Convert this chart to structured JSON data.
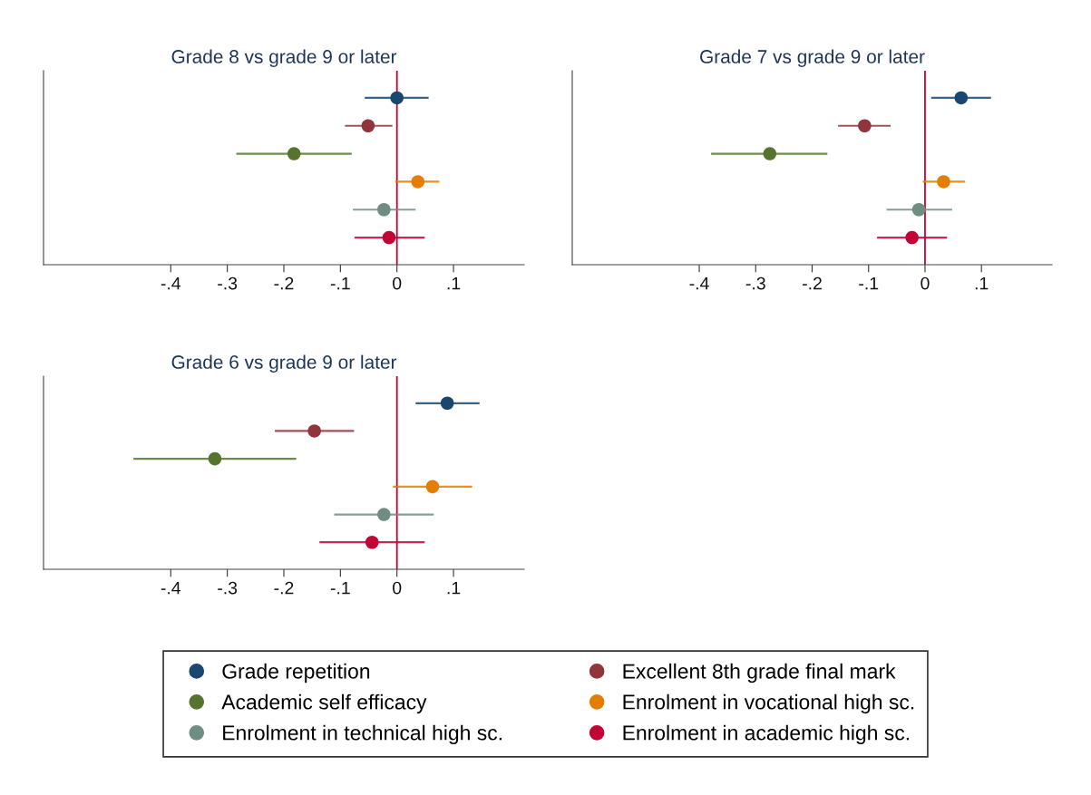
{
  "chart_data": [
    {
      "type": "scatter",
      "orientation": "horizontal",
      "title": "Grade 8 vs grade 9 or later",
      "categories": [
        null,
        null,
        null,
        null,
        null,
        null
      ],
      "xlim": [
        -0.625,
        0.225
      ],
      "xticks": [
        {
          "value": -0.4,
          "label": "-.4"
        },
        {
          "value": -0.3,
          "label": "-.3"
        },
        {
          "value": -0.2,
          "label": "-.2"
        },
        {
          "value": -0.1,
          "label": "-.1"
        },
        {
          "value": 0,
          "label": "0"
        },
        {
          "value": 0.1,
          "label": ".1"
        }
      ],
      "tick_labels": "x",
      "marker": "circle",
      "grid": false,
      "legend": "bottom",
      "ref_lines": [
        {
          "axis": "x",
          "value": 0,
          "color": "#c10534"
        }
      ],
      "series": [
        {
          "name": "Grade repetition",
          "color": "#1a476f",
          "values": [
            0.0,
            null,
            null,
            null,
            null,
            null
          ],
          "errors": [
            [
              -0.057,
              0.056
            ],
            null,
            null,
            null,
            null,
            null
          ]
        },
        {
          "name": "Excellent 8th grade final mark",
          "color": "#90353b",
          "values": [
            null,
            -0.051,
            null,
            null,
            null,
            null
          ],
          "errors": [
            null,
            [
              -0.092,
              -0.008
            ],
            null,
            null,
            null,
            null
          ]
        },
        {
          "name": "Academic self efficacy",
          "color": "#55752f",
          "values": [
            null,
            null,
            -0.182,
            null,
            null,
            null
          ],
          "errors": [
            null,
            null,
            [
              -0.284,
              -0.08
            ],
            null,
            null,
            null
          ]
        },
        {
          "name": "Enrolment in vocational high sc.",
          "color": "#e37e00",
          "values": [
            null,
            null,
            null,
            0.037,
            null,
            null
          ],
          "errors": [
            null,
            null,
            null,
            [
              -0.003,
              0.075
            ],
            null,
            null
          ]
        },
        {
          "name": "Enrolment in technical high sc.",
          "color": "#6e8e84",
          "values": [
            null,
            null,
            null,
            null,
            -0.023,
            null
          ],
          "errors": [
            null,
            null,
            null,
            null,
            [
              -0.078,
              0.033
            ],
            null
          ]
        },
        {
          "name": "Enrolment in academic high sc.",
          "color": "#c10534",
          "values": [
            null,
            null,
            null,
            null,
            null,
            -0.014
          ],
          "errors": [
            null,
            null,
            null,
            null,
            null,
            [
              -0.075,
              0.049
            ]
          ]
        }
      ]
    },
    {
      "type": "scatter",
      "orientation": "horizontal",
      "title": "Grade 7 vs grade 9 or later",
      "categories": [
        null,
        null,
        null,
        null,
        null,
        null
      ],
      "xlim": [
        -0.625,
        0.225
      ],
      "xticks": [
        {
          "value": -0.4,
          "label": "-.4"
        },
        {
          "value": -0.3,
          "label": "-.3"
        },
        {
          "value": -0.2,
          "label": "-.2"
        },
        {
          "value": -0.1,
          "label": "-.1"
        },
        {
          "value": 0,
          "label": "0"
        },
        {
          "value": 0.1,
          "label": ".1"
        }
      ],
      "tick_labels": "x",
      "marker": "circle",
      "grid": false,
      "ref_lines": [
        {
          "axis": "x",
          "value": 0,
          "color": "#c10534"
        }
      ],
      "series": [
        {
          "color": "#1a476f",
          "values": [
            0.064,
            null,
            null,
            null,
            null,
            null
          ],
          "errors": [
            [
              0.011,
              0.117
            ],
            null,
            null,
            null,
            null,
            null
          ]
        },
        {
          "color": "#90353b",
          "values": [
            null,
            -0.107,
            null,
            null,
            null,
            null
          ],
          "errors": [
            null,
            [
              -0.154,
              -0.061
            ],
            null,
            null,
            null,
            null
          ]
        },
        {
          "color": "#55752f",
          "values": [
            null,
            null,
            -0.275,
            null,
            null,
            null
          ],
          "errors": [
            null,
            null,
            [
              -0.379,
              -0.173
            ],
            null,
            null,
            null
          ]
        },
        {
          "color": "#e37e00",
          "values": [
            null,
            null,
            null,
            0.033,
            null,
            null
          ],
          "errors": [
            null,
            null,
            null,
            [
              -0.004,
              0.071
            ],
            null,
            null
          ]
        },
        {
          "color": "#6e8e84",
          "values": [
            null,
            null,
            null,
            null,
            -0.011,
            null
          ],
          "errors": [
            null,
            null,
            null,
            null,
            [
              -0.068,
              0.048
            ],
            null
          ]
        },
        {
          "color": "#c10534",
          "values": [
            null,
            null,
            null,
            null,
            null,
            -0.023
          ],
          "errors": [
            null,
            null,
            null,
            null,
            null,
            [
              -0.085,
              0.039
            ]
          ]
        }
      ]
    },
    {
      "type": "scatter",
      "orientation": "horizontal",
      "title": "Grade 6 vs grade 9 or later",
      "categories": [
        null,
        null,
        null,
        null,
        null,
        null
      ],
      "xlim": [
        -0.625,
        0.225
      ],
      "xticks": [
        {
          "value": -0.4,
          "label": "-.4"
        },
        {
          "value": -0.3,
          "label": "-.3"
        },
        {
          "value": -0.2,
          "label": "-.2"
        },
        {
          "value": -0.1,
          "label": "-.1"
        },
        {
          "value": 0,
          "label": "0"
        },
        {
          "value": 0.1,
          "label": ".1"
        }
      ],
      "tick_labels": "x",
      "marker": "circle",
      "grid": false,
      "ref_lines": [
        {
          "axis": "x",
          "value": 0,
          "color": "#c10534"
        }
      ],
      "series": [
        {
          "color": "#1a476f",
          "values": [
            0.089,
            null,
            null,
            null,
            null,
            null
          ],
          "errors": [
            [
              0.033,
              0.146
            ],
            null,
            null,
            null,
            null,
            null
          ]
        },
        {
          "color": "#90353b",
          "values": [
            null,
            -0.146,
            null,
            null,
            null,
            null
          ],
          "errors": [
            null,
            [
              -0.216,
              -0.076
            ],
            null,
            null,
            null,
            null
          ]
        },
        {
          "color": "#55752f",
          "values": [
            null,
            null,
            -0.322,
            null,
            null,
            null
          ],
          "errors": [
            null,
            null,
            [
              -0.466,
              -0.178
            ],
            null,
            null,
            null
          ]
        },
        {
          "color": "#e37e00",
          "values": [
            null,
            null,
            null,
            0.063,
            null,
            null
          ],
          "errors": [
            null,
            null,
            null,
            [
              -0.007,
              0.133
            ],
            null,
            null
          ]
        },
        {
          "color": "#6e8e84",
          "values": [
            null,
            null,
            null,
            null,
            -0.023,
            null
          ],
          "errors": [
            null,
            null,
            null,
            null,
            [
              -0.111,
              0.065
            ],
            null
          ]
        },
        {
          "color": "#c10534",
          "values": [
            null,
            null,
            null,
            null,
            null,
            -0.044
          ],
          "errors": [
            null,
            null,
            null,
            null,
            null,
            [
              -0.137,
              0.049
            ]
          ]
        }
      ]
    }
  ]
}
